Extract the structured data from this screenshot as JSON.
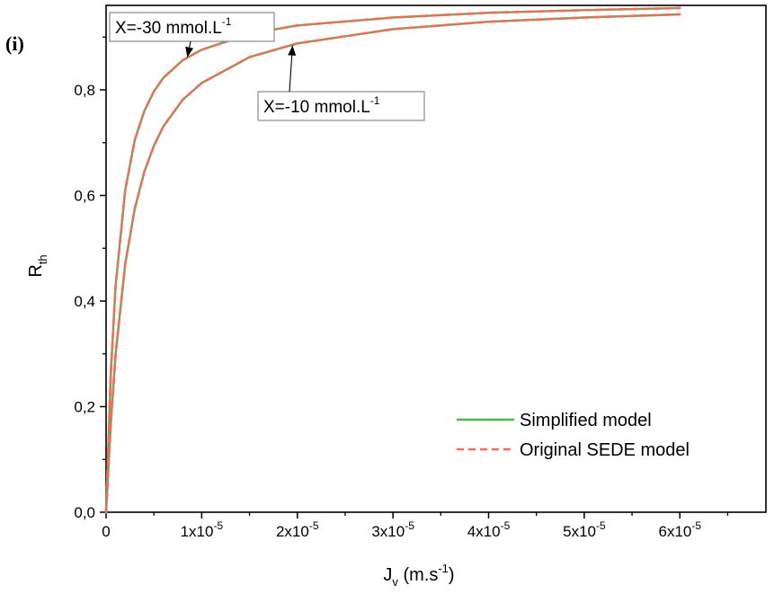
{
  "panel_label": "(i)",
  "chart_data": {
    "type": "line",
    "title": "",
    "xlabel": {
      "main": "J",
      "sub": "v",
      "unit_prefix": " (m.s",
      "unit_sup": "-1",
      "unit_suffix": ")"
    },
    "ylabel": {
      "main": "R",
      "sub": "th"
    },
    "xlim": [
      0,
      6.9e-05
    ],
    "ylim": [
      0,
      0.96
    ],
    "x_ticks": [
      {
        "value": 0,
        "label": "0",
        "sup": ""
      },
      {
        "value": 1e-05,
        "label": "1x10",
        "sup": "-5"
      },
      {
        "value": 2e-05,
        "label": "2x10",
        "sup": "-5"
      },
      {
        "value": 3e-05,
        "label": "3x10",
        "sup": "-5"
      },
      {
        "value": 4e-05,
        "label": "4x10",
        "sup": "-5"
      },
      {
        "value": 5e-05,
        "label": "5x10",
        "sup": "-5"
      },
      {
        "value": 6e-05,
        "label": "6x10",
        "sup": "-5"
      }
    ],
    "y_ticks": [
      {
        "value": 0.0,
        "label": "0,0"
      },
      {
        "value": 0.2,
        "label": "0,2"
      },
      {
        "value": 0.4,
        "label": "0,4"
      },
      {
        "value": 0.6,
        "label": "0,6"
      },
      {
        "value": 0.8,
        "label": "0,8"
      }
    ],
    "grid": false,
    "legend_position": "bottom-right",
    "legend": [
      {
        "label": "Simplified model",
        "color": "#4db848",
        "style": "solid"
      },
      {
        "label": "Original SEDE model",
        "color": "#f26b5b",
        "style": "dashed"
      }
    ],
    "series": [
      {
        "model": "Simplified model",
        "curve": "X=-30",
        "color": "#4db848",
        "x": [
          0,
          5e-07,
          1e-06,
          2e-06,
          3e-06,
          4e-06,
          5e-06,
          6e-06,
          8e-06,
          1e-05,
          1.5e-05,
          2e-05,
          3e-05,
          4e-05,
          5e-05,
          6e-05
        ],
        "y": [
          0,
          0.265,
          0.43,
          0.61,
          0.705,
          0.76,
          0.797,
          0.823,
          0.856,
          0.876,
          0.906,
          0.922,
          0.937,
          0.946,
          0.951,
          0.955
        ]
      },
      {
        "model": "Original SEDE model",
        "curve": "X=-30",
        "color": "#f26b5b",
        "x": [
          0,
          5e-07,
          1e-06,
          2e-06,
          3e-06,
          4e-06,
          5e-06,
          6e-06,
          8e-06,
          1e-05,
          1.5e-05,
          2e-05,
          3e-05,
          4e-05,
          5e-05,
          6e-05
        ],
        "y": [
          0,
          0.265,
          0.43,
          0.61,
          0.705,
          0.76,
          0.797,
          0.823,
          0.856,
          0.876,
          0.906,
          0.922,
          0.937,
          0.946,
          0.951,
          0.955
        ]
      },
      {
        "model": "Simplified model",
        "curve": "X=-10",
        "color": "#4db848",
        "x": [
          0,
          5e-07,
          1e-06,
          2e-06,
          3e-06,
          4e-06,
          5e-06,
          6e-06,
          8e-06,
          1e-05,
          1.5e-05,
          2e-05,
          3e-05,
          4e-05,
          5e-05,
          6e-05
        ],
        "y": [
          0,
          0.17,
          0.3,
          0.47,
          0.575,
          0.645,
          0.694,
          0.731,
          0.781,
          0.813,
          0.862,
          0.888,
          0.915,
          0.929,
          0.937,
          0.943
        ]
      },
      {
        "model": "Original SEDE model",
        "curve": "X=-10",
        "color": "#f26b5b",
        "x": [
          0,
          5e-07,
          1e-06,
          2e-06,
          3e-06,
          4e-06,
          5e-06,
          6e-06,
          8e-06,
          1e-05,
          1.5e-05,
          2e-05,
          3e-05,
          4e-05,
          5e-05,
          6e-05
        ],
        "y": [
          0,
          0.17,
          0.3,
          0.47,
          0.575,
          0.645,
          0.694,
          0.731,
          0.781,
          0.813,
          0.862,
          0.888,
          0.915,
          0.929,
          0.937,
          0.943
        ]
      }
    ],
    "annotations": [
      {
        "curve": "X=-30",
        "text": "X=-30 mmol.L",
        "sup": "-1",
        "point_x": 8.5e-06,
        "point_y": 0.862
      },
      {
        "curve": "X=-10",
        "text": "X=-10 mmol.L",
        "sup": "-1",
        "point_x": 1.95e-05,
        "point_y": 0.884
      }
    ]
  }
}
